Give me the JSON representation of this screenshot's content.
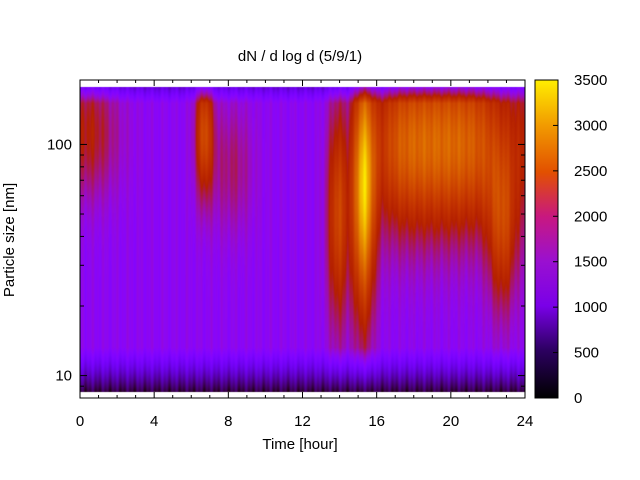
{
  "chart_data": {
    "type": "heatmap",
    "title": "dN / d log d (5/9/1)",
    "xlabel": "Time [hour]",
    "ylabel": "Particle size [nm]",
    "xlim": [
      0,
      24
    ],
    "ylim": [
      8,
      190
    ],
    "y_scale": "log",
    "x_ticks": [
      0,
      4,
      8,
      12,
      16,
      20,
      24
    ],
    "y_ticks": [
      10,
      100
    ],
    "colorbar": {
      "min": 0,
      "max": 3500,
      "ticks": [
        0,
        500,
        1000,
        1500,
        2000,
        2500,
        3000,
        3500
      ],
      "palette": "gnuplot",
      "colors": [
        "#000000",
        "#5a00a8",
        "#8a00f5",
        "#c4169b",
        "#d83a00",
        "#ef8f00",
        "#ffe800"
      ]
    },
    "features": [
      {
        "time_hour": 0.5,
        "peak_size_nm": 110,
        "value": 2000
      },
      {
        "time_hour": 6.7,
        "peak_size_nm": 110,
        "value": 2400
      },
      {
        "time_hour": 13.9,
        "peak_size_nm": 50,
        "value": 2300
      },
      {
        "time_hour": 15.3,
        "peak_size_nm": 65,
        "value": 3200
      },
      {
        "time_hour": 19.0,
        "peak_size_nm": 100,
        "value": 2700
      },
      {
        "time_hour": 22.8,
        "peak_size_nm": 40,
        "value": 2100
      }
    ]
  }
}
